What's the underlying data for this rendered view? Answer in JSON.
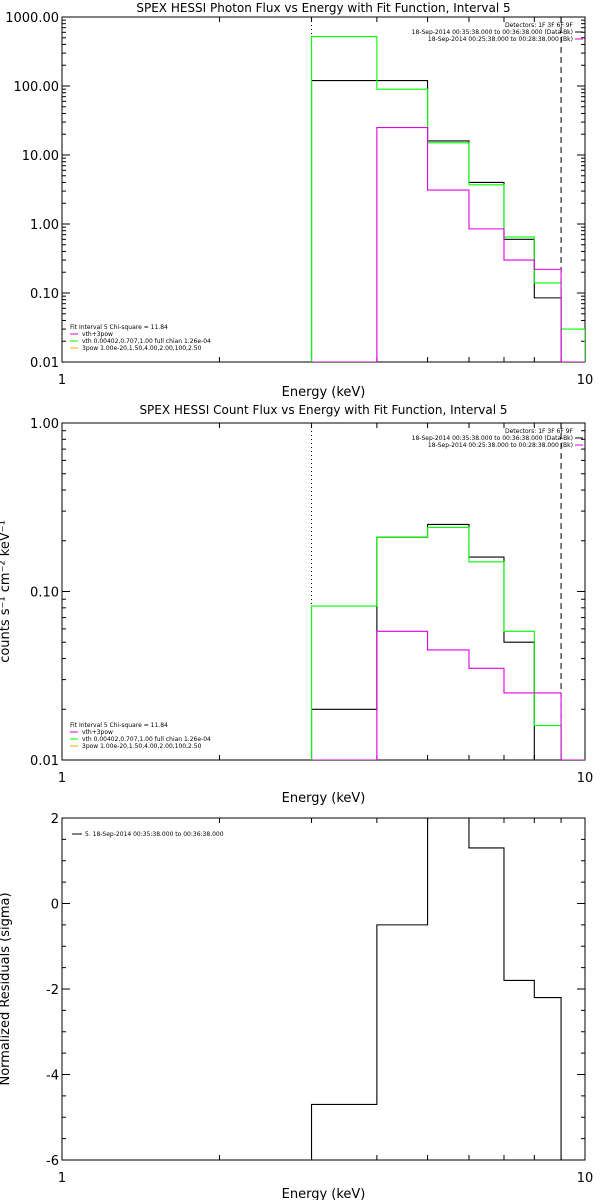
{
  "colors": {
    "background": "#ffffff",
    "axes": "#000000",
    "black_series": "#000000",
    "green_series": "#00ff00",
    "magenta_series": "#e000e0",
    "orange_series": "#ffa500"
  },
  "chart_data": [
    {
      "type": "line",
      "step": true,
      "title": "SPEX HESSI Photon Flux vs Energy with Fit Function, Interval 5",
      "xlabel": "Energy (keV)",
      "ylabel": "",
      "xscale": "log",
      "yscale": "log",
      "xlim": [
        1,
        10
      ],
      "ylim": [
        0.01,
        1000
      ],
      "x_tick_labels": [
        "1",
        "10"
      ],
      "y_tick_labels": [
        "0.01",
        "0.10",
        "1.00",
        "10.00",
        "100.00",
        "1000.00"
      ],
      "y_tick_values": [
        0.01,
        0.1,
        1,
        10,
        100,
        1000
      ],
      "bin_edges": [
        3,
        4,
        5,
        6,
        7,
        8,
        9,
        10
      ],
      "vlines": [
        {
          "x": 3,
          "style": "dotted"
        },
        {
          "x": 9,
          "style": "dashed"
        }
      ],
      "series": [
        {
          "color": "black",
          "values": [
            120,
            120,
            16,
            4,
            0.6,
            0.085,
            0.01
          ]
        },
        {
          "color": "green",
          "values": [
            520,
            90,
            15,
            3.7,
            0.65,
            0.14,
            0.03
          ]
        },
        {
          "color": "magenta",
          "values": [
            0.01,
            25,
            3.1,
            0.85,
            0.3,
            0.22,
            0.01
          ]
        }
      ],
      "legend_top_right": [
        "Detectors: 1F 3F 6F 9F",
        "18-Sep-2014 00:35:38.000 to 00:36:38.000 (Data-Bk)",
        "18-Sep-2014 00:25:38.000 to 00:28:38.000 (Bk)"
      ],
      "legend_bottom_left": {
        "header": "Fit Interval 5   Chi-square = 11.84",
        "entries": [
          "vth+3pow",
          "vth 0.00402,0.707,1.00  full chian 1.26e-04",
          "3pow 1.00e-20,1.50,4.00,2.00,100,2.50"
        ]
      }
    },
    {
      "type": "line",
      "step": true,
      "title": "SPEX HESSI Count Flux vs Energy with Fit Function, Interval 5",
      "xlabel": "Energy (keV)",
      "ylabel": "counts s⁻¹ cm⁻² keV⁻¹",
      "xscale": "log",
      "yscale": "log",
      "xlim": [
        1,
        10
      ],
      "ylim": [
        0.01,
        1.0
      ],
      "x_tick_labels": [
        "1",
        "10"
      ],
      "y_tick_labels": [
        "0.01",
        "0.10",
        "1.00"
      ],
      "y_tick_values": [
        0.01,
        0.1,
        1.0
      ],
      "bin_edges": [
        3,
        4,
        5,
        6,
        7,
        8,
        9,
        10
      ],
      "vlines": [
        {
          "x": 3,
          "style": "dotted"
        },
        {
          "x": 9,
          "style": "dashed"
        }
      ],
      "series": [
        {
          "color": "black",
          "values": [
            0.02,
            0.21,
            0.25,
            0.16,
            0.05,
            0.01,
            0.01
          ]
        },
        {
          "color": "green",
          "values": [
            0.082,
            0.21,
            0.24,
            0.15,
            0.058,
            0.016,
            0.01
          ]
        },
        {
          "color": "magenta",
          "values": [
            0.01,
            0.058,
            0.045,
            0.035,
            0.025,
            0.025,
            0.01
          ]
        }
      ],
      "legend_top_right": [
        "Detectors: 1F 3F 6F 9F",
        "18-Sep-2014 00:35:38.000 to 00:36:38.000 (Data-Bk)",
        "18-Sep-2014 00:25:38.000 to 00:28:38.000 (Bk)"
      ],
      "legend_bottom_left": {
        "header": "Fit Interval 5   Chi-square = 11.84",
        "entries": [
          "vth+3pow",
          "vth 0.00402,0.707,1.00  full chian 1.26e-04",
          "3pow 1.00e-20,1.50,4.00,2.00,100,2.50"
        ]
      }
    },
    {
      "type": "line",
      "step": true,
      "title": "",
      "xlabel": "Energy (keV)",
      "ylabel": "Normalized Residuals (sigma)",
      "xscale": "log",
      "yscale": "linear",
      "xlim": [
        1,
        10
      ],
      "ylim": [
        -6,
        2
      ],
      "x_tick_labels": [
        "1",
        "10"
      ],
      "y_tick_labels": [
        "-6",
        "-4",
        "-2",
        "0",
        "2"
      ],
      "y_tick_values": [
        -6,
        -4,
        -2,
        0,
        2
      ],
      "bin_edges": [
        3,
        4,
        5,
        6,
        7,
        8,
        9
      ],
      "series": [
        {
          "color": "black",
          "values": [
            -4.7,
            -0.5,
            2.0,
            1.3,
            -1.8,
            -2.2
          ]
        }
      ],
      "legend_top_left": "5. 18-Sep-2014 00:35:38.000 to 00:36:38.000"
    }
  ]
}
